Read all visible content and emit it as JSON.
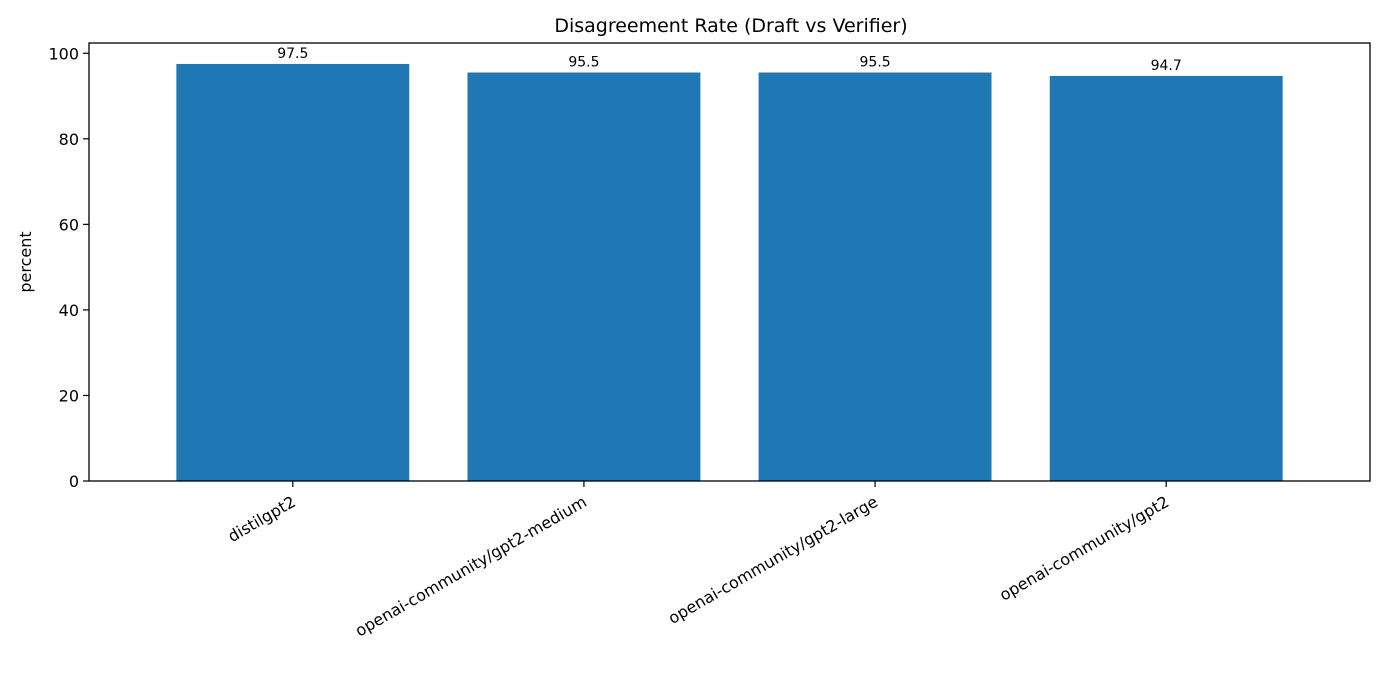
{
  "chart_data": {
    "type": "bar",
    "title": "Disagreement Rate (Draft vs Verifier)",
    "xlabel": "",
    "ylabel": "percent",
    "categories": [
      "distilgpt2",
      "openai-community/gpt2-medium",
      "openai-community/gpt2-large",
      "openai-community/gpt2"
    ],
    "values": [
      97.5,
      95.5,
      95.5,
      94.7
    ],
    "value_labels": [
      "97.5",
      "95.5",
      "95.5",
      "94.7"
    ],
    "ylim": [
      0,
      102.4
    ],
    "yticks": [
      0,
      20,
      40,
      60,
      80,
      100
    ],
    "ytick_labels": [
      "0",
      "20",
      "40",
      "60",
      "80",
      "100"
    ],
    "grid": false,
    "legend": "none",
    "bar_color": "#1f77b4",
    "xtick_rotation": "30 degrees, right-aligned"
  }
}
